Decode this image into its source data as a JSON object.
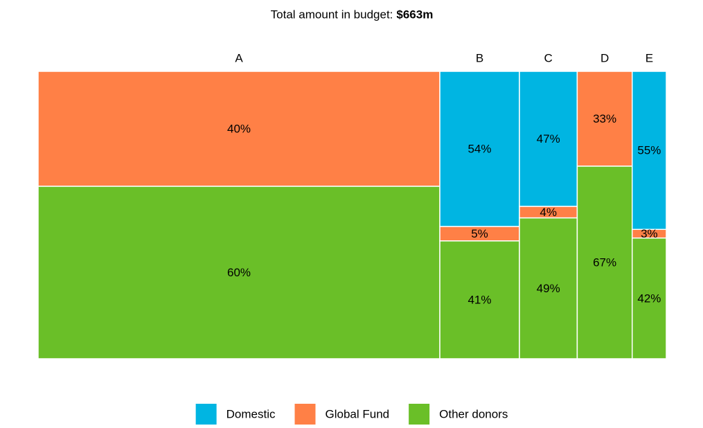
{
  "chart_data": {
    "type": "mekko",
    "title": "Total amount in budget:",
    "total_label": "$663m",
    "categories": [
      "A",
      "B",
      "C",
      "D",
      "E"
    ],
    "totals": [
      424,
      84,
      61,
      58,
      36
    ],
    "series": [
      {
        "name": "Domestic",
        "color": "#00b5e2",
        "values": [
          0,
          54,
          47,
          0,
          55
        ],
        "value_labels": [
          null,
          "54%",
          "47%",
          null,
          "55%"
        ]
      },
      {
        "name": "Global Fund",
        "color": "#ff8046",
        "values": [
          40,
          5,
          4,
          33,
          3
        ],
        "value_labels": [
          "40%",
          "5%",
          "4%",
          "33%",
          "3%"
        ]
      },
      {
        "name": "Other donors",
        "color": "#6abf28",
        "values": [
          60,
          41,
          49,
          67,
          42
        ],
        "value_labels": [
          "60%",
          "41%",
          "49%",
          "67%",
          "42%"
        ]
      }
    ]
  }
}
